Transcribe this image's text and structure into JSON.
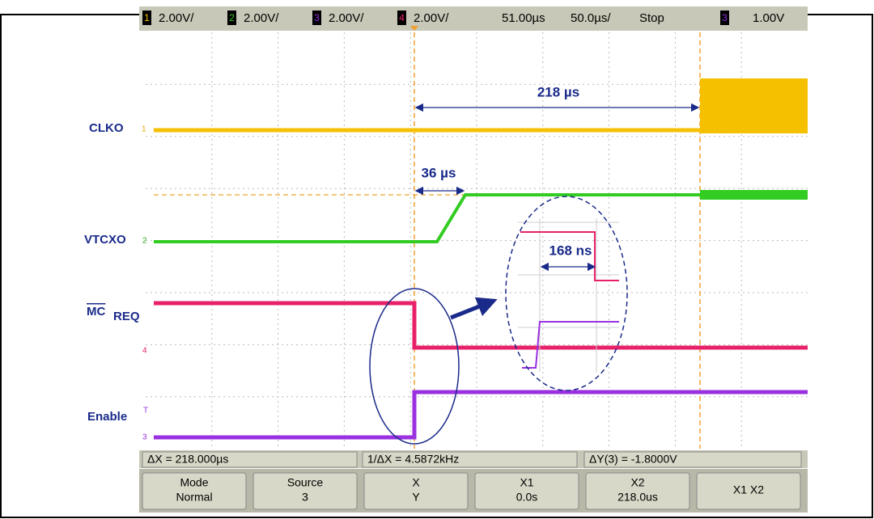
{
  "header": {
    "channels": [
      {
        "number": "1",
        "scale": "2.00V/"
      },
      {
        "number": "2",
        "scale": "2.00V/"
      },
      {
        "number": "3",
        "scale": "2.00V/"
      },
      {
        "number": "4",
        "scale": "2.00V/"
      }
    ],
    "delay": "51.00µs",
    "timebase": "50.0µs/",
    "run_state": "Stop",
    "trigger_source": "3",
    "trigger_level": "1.00V"
  },
  "traces": [
    {
      "name": "CLKO",
      "marker": "1"
    },
    {
      "name": "VTCXO",
      "marker": "2"
    },
    {
      "name": "MC",
      "subscript": "REQ",
      "marker": "4"
    },
    {
      "name": "Enable",
      "marker": "3",
      "trigger_marker": "T"
    }
  ],
  "annotations": [
    "218 µs",
    "36 µs",
    "168 ns"
  ],
  "status": [
    "ΔX = 218.000µs",
    "1/ΔX = 4.5872kHz",
    "ΔY(3) = -1.8000V"
  ],
  "softkeys": [
    {
      "top": "Mode",
      "bottom": "Normal"
    },
    {
      "top": "Source",
      "bottom": "3"
    },
    {
      "top": "X",
      "bottom": "Y"
    },
    {
      "top": "X1",
      "bottom": "0.0s"
    },
    {
      "top": "X2",
      "bottom": "218.0us"
    },
    {
      "top": "X1 X2",
      "bottom": ""
    }
  ]
}
